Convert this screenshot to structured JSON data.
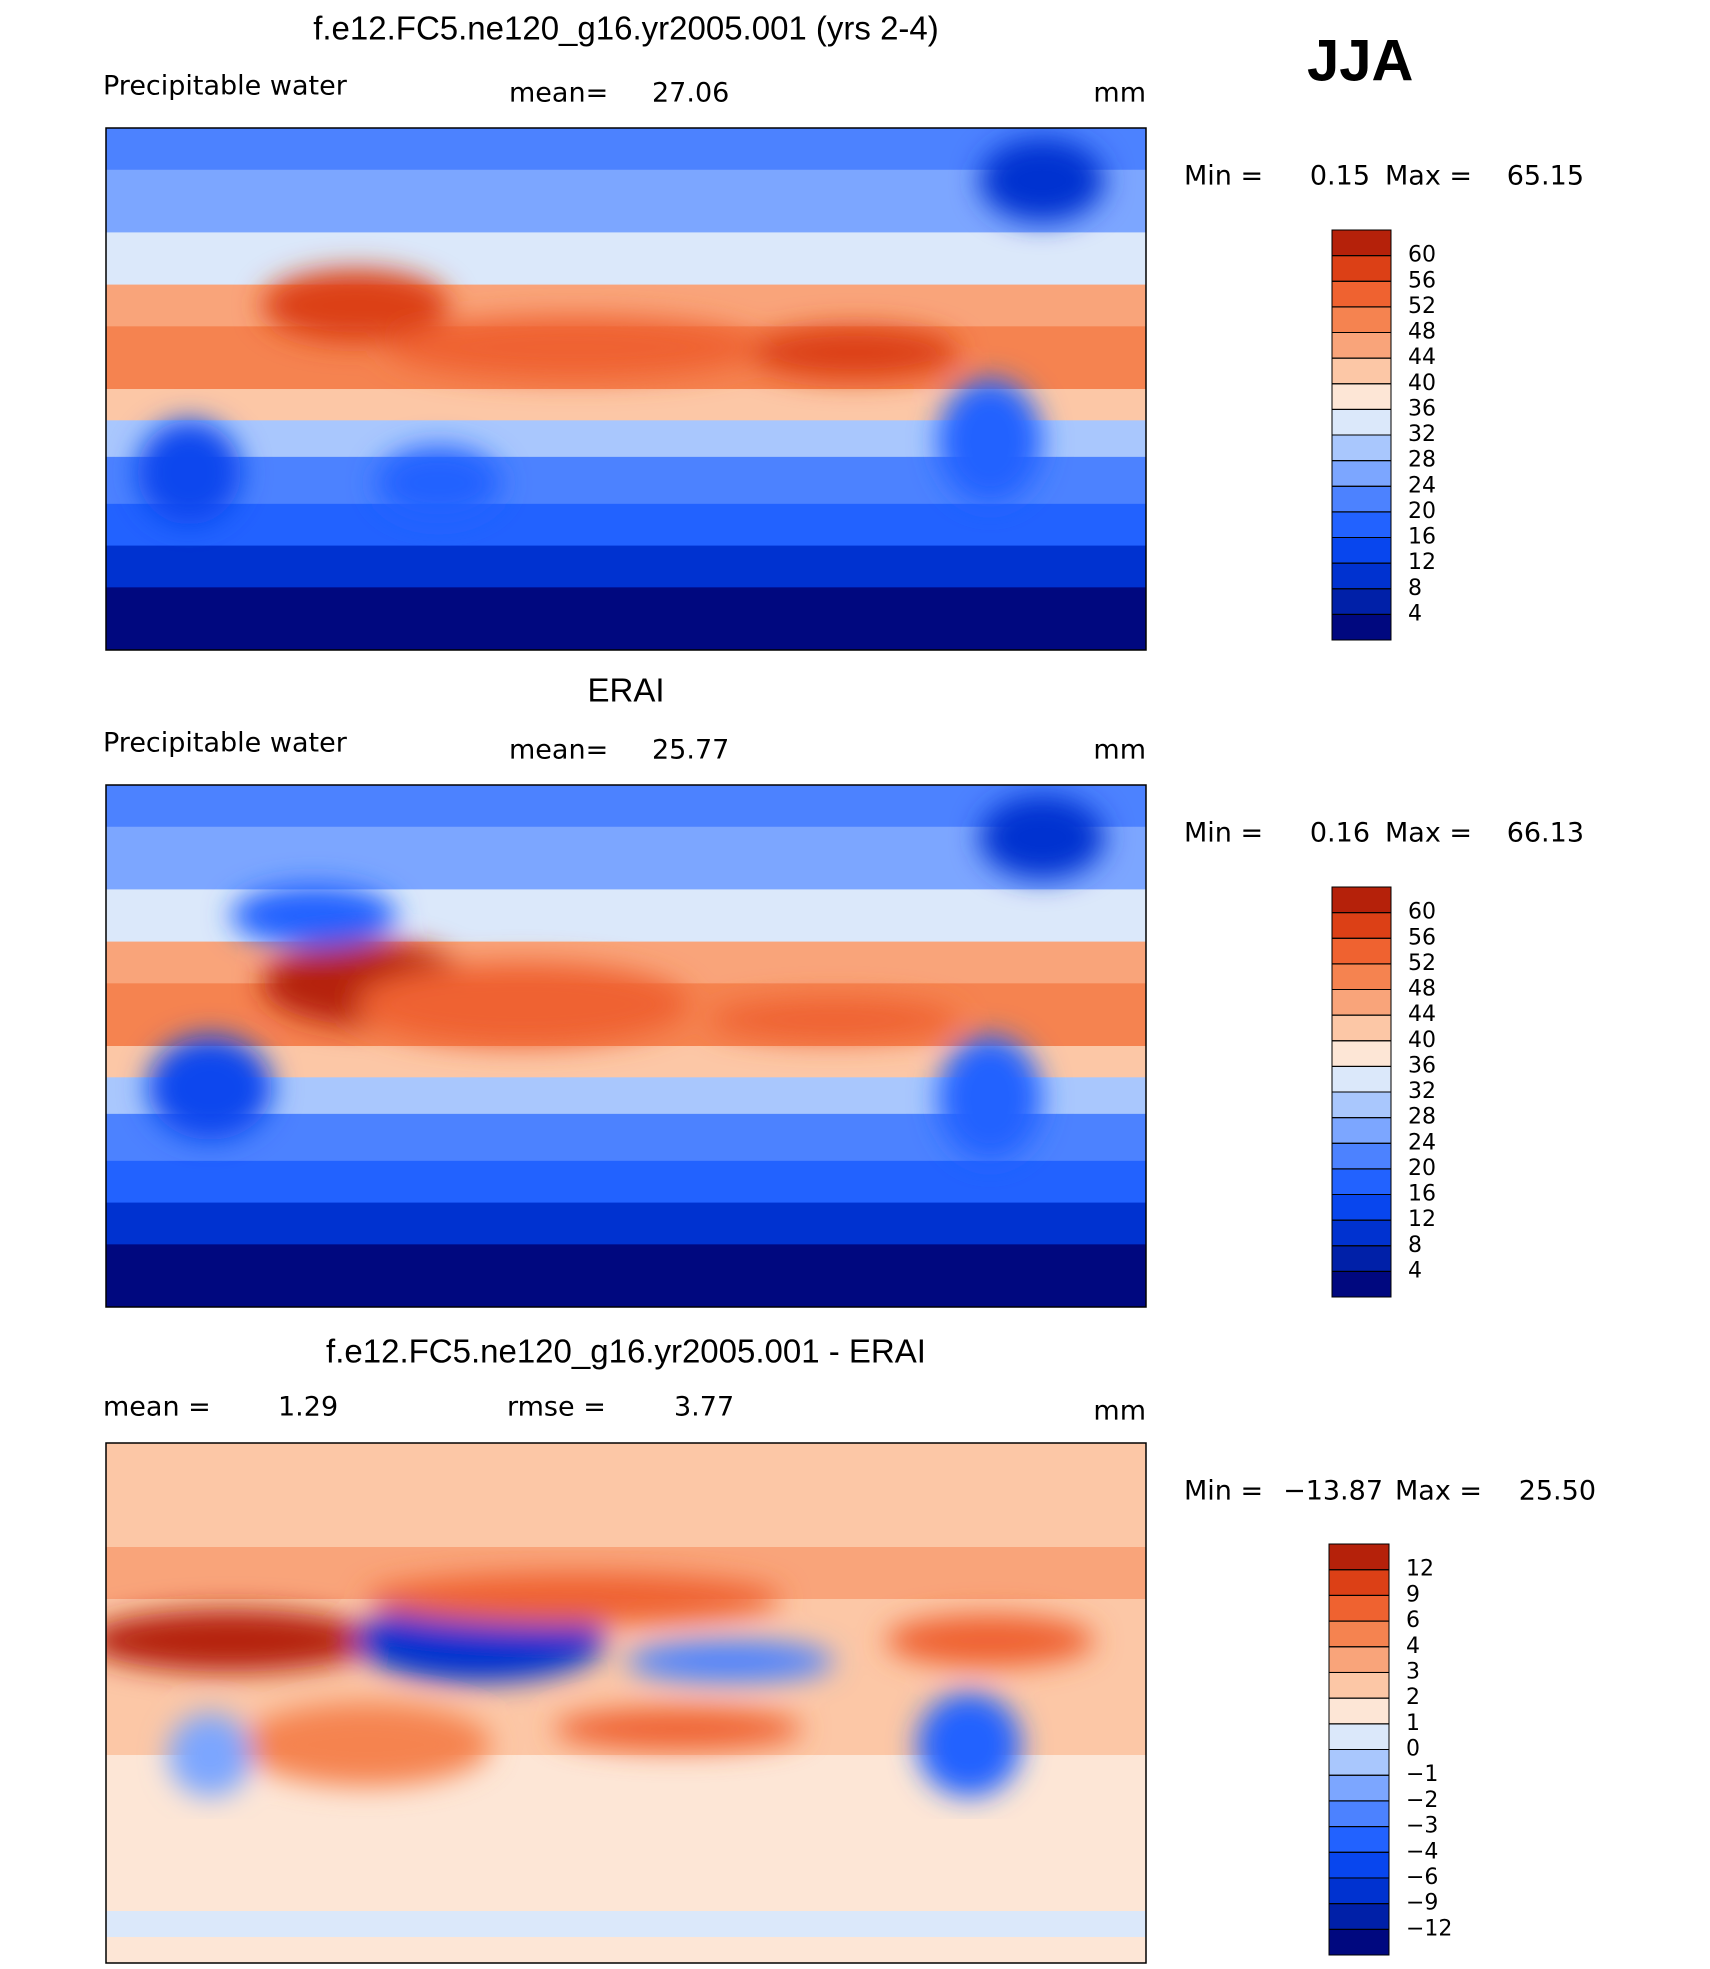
{
  "season": "JJA",
  "panels": [
    {
      "title": "f.e12.FC5.ne120_g16.yr2005.001 (yrs 2-4)",
      "variable": "Precipitable water",
      "mean_label": "mean=",
      "mean": 27.06,
      "units": "mm",
      "min_label": "Min =",
      "min": 0.15,
      "max_label": "Max =",
      "max": 65.15,
      "levels": [
        4,
        8,
        12,
        16,
        20,
        24,
        28,
        32,
        36,
        40,
        44,
        48,
        52,
        56,
        60
      ],
      "colors": [
        "#00087f",
        "#0020a8",
        "#0032d0",
        "#0846ee",
        "#2262ff",
        "#4c82ff",
        "#7ca6ff",
        "#a9c7fd",
        "#dbe8fa",
        "#fde6d6",
        "#fcc7a6",
        "#f9a47a",
        "#f58350",
        "#ef6230",
        "#dc4016",
        "#b5210a",
        "#880a00"
      ]
    },
    {
      "title": "ERAI",
      "variable": "Precipitable water",
      "mean_label": "mean=",
      "mean": 25.77,
      "units": "mm",
      "min_label": "Min =",
      "min": 0.16,
      "max_label": "Max =",
      "max": 66.13,
      "levels": [
        4,
        8,
        12,
        16,
        20,
        24,
        28,
        32,
        36,
        40,
        44,
        48,
        52,
        56,
        60
      ],
      "colors": [
        "#00087f",
        "#0020a8",
        "#0032d0",
        "#0846ee",
        "#2262ff",
        "#4c82ff",
        "#7ca6ff",
        "#a9c7fd",
        "#dbe8fa",
        "#fde6d6",
        "#fcc7a6",
        "#f9a47a",
        "#f58350",
        "#ef6230",
        "#dc4016",
        "#b5210a",
        "#880a00"
      ]
    },
    {
      "title": "f.e12.FC5.ne120_g16.yr2005.001 - ERAI",
      "mean_label": "mean =",
      "mean": 1.29,
      "rmse_label": "rmse =",
      "rmse": 3.77,
      "units": "mm",
      "min_label": "Min =",
      "min": {
        "value": -13.87,
        "label": "−13.87"
      },
      "max_label": "Max =",
      "max": {
        "value": 25.5,
        "label": "25.50"
      },
      "levels": [
        {
          "value": -12,
          "label": "−12"
        },
        {
          "value": -9,
          "label": "−9"
        },
        {
          "value": -6,
          "label": "−6"
        },
        {
          "value": -4,
          "label": "−4"
        },
        {
          "value": -3,
          "label": "−3"
        },
        {
          "value": -2,
          "label": "−2"
        },
        {
          "value": -1,
          "label": "−1"
        },
        0,
        1,
        2,
        3,
        4,
        6,
        9,
        12
      ],
      "colors": [
        "#00087f",
        "#0020a8",
        "#0032d0",
        "#0846ee",
        "#2262ff",
        "#4c82ff",
        "#7ca6ff",
        "#a9c7fd",
        "#dbe8fa",
        "#fde6d6",
        "#fcc7a6",
        "#f9a47a",
        "#f58350",
        "#ef6230",
        "#dc4016",
        "#b5210a",
        "#880a00"
      ]
    }
  ]
}
